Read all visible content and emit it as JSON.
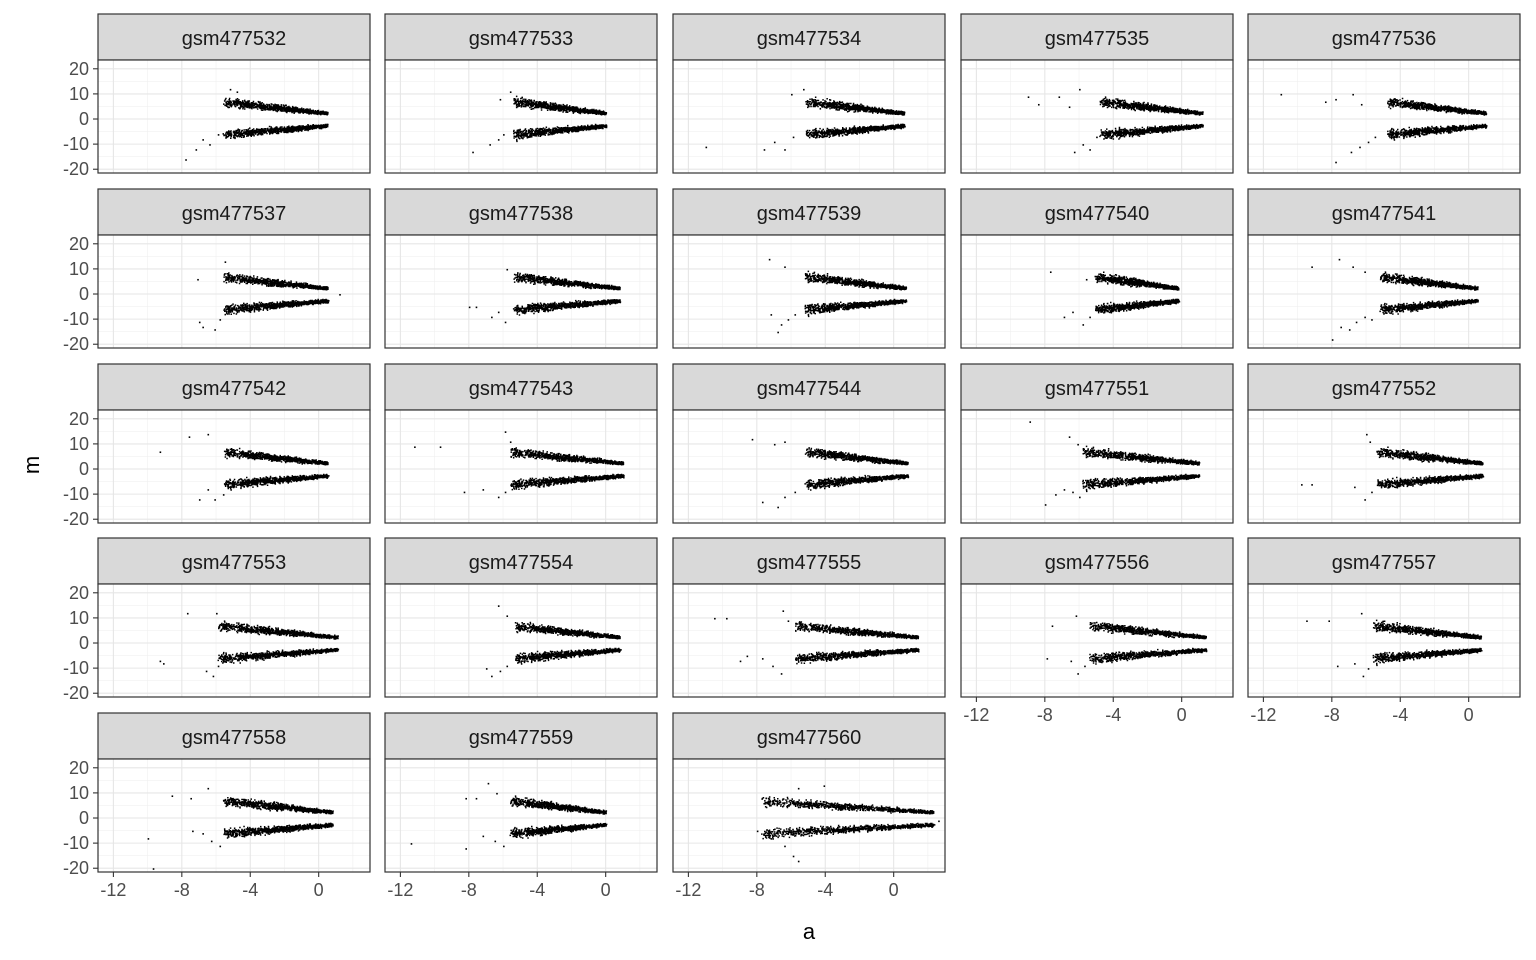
{
  "chart_data": {
    "type": "scatter",
    "xlabel": "a",
    "ylabel": "m",
    "xlim": [
      -12.9,
      3.0
    ],
    "ylim": [
      -21.5,
      23.5
    ],
    "xticks": [
      -12,
      -8,
      -4,
      0
    ],
    "xtick_labels": [
      "-12",
      "-8",
      "-4",
      "0"
    ],
    "yticks": [
      -20,
      -10,
      0,
      10,
      20
    ],
    "ytick_labels": [
      "-20",
      "-10",
      "0",
      "10",
      "20"
    ],
    "grid": true,
    "theme": "bw",
    "point_color": "#000000",
    "panel_strip_color": "#d9d9d9",
    "panels": [
      {
        "label": "gsm477532",
        "a_min": -5.6,
        "a_max": 0.5,
        "outliers": [
          [
            -4.8,
            11
          ],
          [
            -5.2,
            12
          ],
          [
            -7.8,
            -16
          ],
          [
            -7.2,
            -12
          ],
          [
            -6.4,
            -10
          ],
          [
            -6.8,
            -8
          ],
          [
            -5.9,
            -6
          ]
        ]
      },
      {
        "label": "gsm477533",
        "a_min": -5.4,
        "a_max": 0.0,
        "outliers": [
          [
            -6.2,
            8
          ],
          [
            -5.6,
            11
          ],
          [
            -7.8,
            -13
          ],
          [
            -6.8,
            -10
          ],
          [
            -6.3,
            -8
          ],
          [
            -6.0,
            -6
          ]
        ]
      },
      {
        "label": "gsm477534",
        "a_min": -5.2,
        "a_max": 0.6,
        "outliers": [
          [
            -5.3,
            12
          ],
          [
            -6.0,
            10
          ],
          [
            -11.0,
            -11
          ],
          [
            -7.6,
            -12
          ],
          [
            -7.0,
            -9
          ],
          [
            -6.4,
            -12
          ],
          [
            -5.9,
            -7
          ]
        ]
      },
      {
        "label": "gsm477535",
        "a_min": -4.8,
        "a_max": 1.2,
        "outliers": [
          [
            -9.0,
            9
          ],
          [
            -8.4,
            6
          ],
          [
            -7.2,
            9
          ],
          [
            -6.6,
            5
          ],
          [
            -6.0,
            12
          ],
          [
            -6.3,
            -13
          ],
          [
            -5.8,
            -10
          ],
          [
            -5.4,
            -12
          ],
          [
            -5.0,
            -7
          ]
        ]
      },
      {
        "label": "gsm477536",
        "a_min": -4.8,
        "a_max": 1.0,
        "outliers": [
          [
            -11.0,
            10
          ],
          [
            -8.4,
            7
          ],
          [
            -7.8,
            8
          ],
          [
            -6.8,
            10
          ],
          [
            -6.3,
            6
          ],
          [
            -7.8,
            -17
          ],
          [
            -6.9,
            -13
          ],
          [
            -6.4,
            -11
          ],
          [
            -5.9,
            -9
          ],
          [
            -5.5,
            -7
          ]
        ]
      },
      {
        "label": "gsm477537",
        "a_min": -5.6,
        "a_max": 0.5,
        "outliers": [
          [
            -7.1,
            6
          ],
          [
            -5.5,
            13
          ],
          [
            -7.0,
            -11
          ],
          [
            -6.8,
            -13
          ],
          [
            -6.1,
            -14
          ],
          [
            -5.8,
            -10
          ],
          [
            1.2,
            0
          ]
        ]
      },
      {
        "label": "gsm477538",
        "a_min": -5.4,
        "a_max": 0.8,
        "outliers": [
          [
            -5.8,
            10
          ],
          [
            -8.0,
            -5
          ],
          [
            -7.6,
            -5
          ],
          [
            -6.7,
            -9
          ],
          [
            -6.3,
            -7
          ],
          [
            -5.9,
            -11
          ]
        ]
      },
      {
        "label": "gsm477539",
        "a_min": -5.2,
        "a_max": 0.7,
        "outliers": [
          [
            -7.3,
            14
          ],
          [
            -6.4,
            11
          ],
          [
            -7.2,
            -8
          ],
          [
            -6.8,
            -15
          ],
          [
            -6.6,
            -12
          ],
          [
            -6.2,
            -10
          ],
          [
            -5.8,
            -8
          ]
        ]
      },
      {
        "label": "gsm477540",
        "a_min": -5.1,
        "a_max": -0.2,
        "outliers": [
          [
            -7.7,
            9
          ],
          [
            -5.6,
            6
          ],
          [
            -6.9,
            -9
          ],
          [
            -6.4,
            -7
          ],
          [
            -5.8,
            -12
          ],
          [
            -5.4,
            -9
          ]
        ]
      },
      {
        "label": "gsm477541",
        "a_min": -5.2,
        "a_max": 0.5,
        "outliers": [
          [
            -9.2,
            11
          ],
          [
            -7.6,
            14
          ],
          [
            -6.8,
            11
          ],
          [
            -6.1,
            9
          ],
          [
            -8.0,
            -18
          ],
          [
            -7.5,
            -13
          ],
          [
            -7.0,
            -14
          ],
          [
            -6.6,
            -11
          ],
          [
            -6.1,
            -9
          ],
          [
            -5.7,
            -10
          ]
        ]
      },
      {
        "label": "gsm477542",
        "a_min": -5.6,
        "a_max": 0.5,
        "outliers": [
          [
            -9.3,
            7
          ],
          [
            -7.6,
            13
          ],
          [
            -6.5,
            14
          ],
          [
            -7.0,
            -12
          ],
          [
            -6.5,
            -8
          ],
          [
            -6.1,
            -12
          ],
          [
            -5.6,
            -10
          ]
        ]
      },
      {
        "label": "gsm477543",
        "a_min": -5.6,
        "a_max": 1.0,
        "outliers": [
          [
            -11.2,
            9
          ],
          [
            -9.7,
            9
          ],
          [
            -5.9,
            15
          ],
          [
            -5.6,
            11
          ],
          [
            -8.3,
            -9
          ],
          [
            -7.2,
            -8
          ],
          [
            -6.3,
            -11
          ],
          [
            -5.9,
            -9
          ]
        ]
      },
      {
        "label": "gsm477544",
        "a_min": -5.2,
        "a_max": 0.8,
        "outliers": [
          [
            -8.3,
            12
          ],
          [
            -7.0,
            10
          ],
          [
            -6.4,
            11
          ],
          [
            -7.7,
            -13
          ],
          [
            -6.8,
            -15
          ],
          [
            -6.4,
            -11
          ],
          [
            -5.8,
            -9
          ]
        ]
      },
      {
        "label": "gsm477551",
        "a_min": -5.8,
        "a_max": 1.0,
        "outliers": [
          [
            -8.9,
            19
          ],
          [
            -6.6,
            13
          ],
          [
            -6.1,
            10
          ],
          [
            -8.0,
            -14
          ],
          [
            -7.4,
            -10
          ],
          [
            -6.9,
            -8
          ],
          [
            -6.4,
            -9
          ],
          [
            -6.0,
            -11
          ]
        ]
      },
      {
        "label": "gsm477552",
        "a_min": -5.4,
        "a_max": 0.8,
        "outliers": [
          [
            -6.0,
            14
          ],
          [
            -5.8,
            11
          ],
          [
            -9.8,
            -6
          ],
          [
            -9.2,
            -6
          ],
          [
            -6.7,
            -7
          ],
          [
            -6.1,
            -12
          ],
          [
            -5.7,
            -9
          ]
        ]
      },
      {
        "label": "gsm477553",
        "a_min": -5.9,
        "a_max": 1.1,
        "outliers": [
          [
            -7.7,
            12
          ],
          [
            -6.0,
            12
          ],
          [
            -9.3,
            -7
          ],
          [
            -9.1,
            -8
          ],
          [
            -6.6,
            -11
          ],
          [
            -6.2,
            -13
          ],
          [
            -5.9,
            -9
          ]
        ]
      },
      {
        "label": "gsm477554",
        "a_min": -5.4,
        "a_max": 0.8,
        "outliers": [
          [
            -6.3,
            15
          ],
          [
            -5.8,
            11
          ],
          [
            -7.0,
            -10
          ],
          [
            -6.7,
            -13
          ],
          [
            -6.2,
            -11
          ],
          [
            -5.8,
            -9
          ]
        ]
      },
      {
        "label": "gsm477555",
        "a_min": -5.8,
        "a_max": 1.4,
        "outliers": [
          [
            -10.5,
            10
          ],
          [
            -9.8,
            10
          ],
          [
            -6.5,
            13
          ],
          [
            -6.2,
            9
          ],
          [
            -9.0,
            -7
          ],
          [
            -8.6,
            -5
          ],
          [
            -7.7,
            -6
          ],
          [
            -7.1,
            -9
          ],
          [
            -6.6,
            -12
          ]
        ]
      },
      {
        "label": "gsm477556",
        "a_min": -5.4,
        "a_max": 1.4,
        "outliers": [
          [
            -7.6,
            7
          ],
          [
            -6.2,
            11
          ],
          [
            -7.9,
            -6
          ],
          [
            -6.5,
            -7
          ],
          [
            -6.1,
            -12
          ],
          [
            -5.7,
            -9
          ]
        ]
      },
      {
        "label": "gsm477557",
        "a_min": -5.6,
        "a_max": 0.7,
        "outliers": [
          [
            -8.2,
            9
          ],
          [
            -6.3,
            12
          ],
          [
            -9.5,
            9
          ],
          [
            -7.7,
            -9
          ],
          [
            -6.7,
            -8
          ],
          [
            -6.2,
            -13
          ],
          [
            -5.9,
            -10
          ]
        ]
      },
      {
        "label": "gsm477558",
        "a_min": -5.6,
        "a_max": 0.8,
        "outliers": [
          [
            -8.6,
            9
          ],
          [
            -6.5,
            12
          ],
          [
            -7.5,
            8
          ],
          [
            -9.7,
            -20
          ],
          [
            -10.0,
            -8
          ],
          [
            -7.4,
            -5
          ],
          [
            -6.8,
            -6
          ],
          [
            -6.3,
            -9
          ],
          [
            -5.8,
            -11
          ]
        ]
      },
      {
        "label": "gsm477559",
        "a_min": -5.6,
        "a_max": 0.0,
        "outliers": [
          [
            -8.2,
            8
          ],
          [
            -7.6,
            8
          ],
          [
            -6.9,
            14
          ],
          [
            -6.4,
            10
          ],
          [
            -11.4,
            -10
          ],
          [
            -8.2,
            -12
          ],
          [
            -7.2,
            -7
          ],
          [
            -6.5,
            -9
          ],
          [
            -6.0,
            -11
          ]
        ]
      },
      {
        "label": "gsm477560",
        "a_min": -7.8,
        "a_max": 2.3,
        "outliers": [
          [
            -7.1,
            6
          ],
          [
            -5.6,
            12
          ],
          [
            -4.1,
            13
          ],
          [
            -8.0,
            -5
          ],
          [
            -7.2,
            -8
          ],
          [
            -6.4,
            -11
          ],
          [
            -5.9,
            -15
          ],
          [
            -5.6,
            -17
          ],
          [
            2.6,
            -1
          ]
        ]
      }
    ]
  }
}
